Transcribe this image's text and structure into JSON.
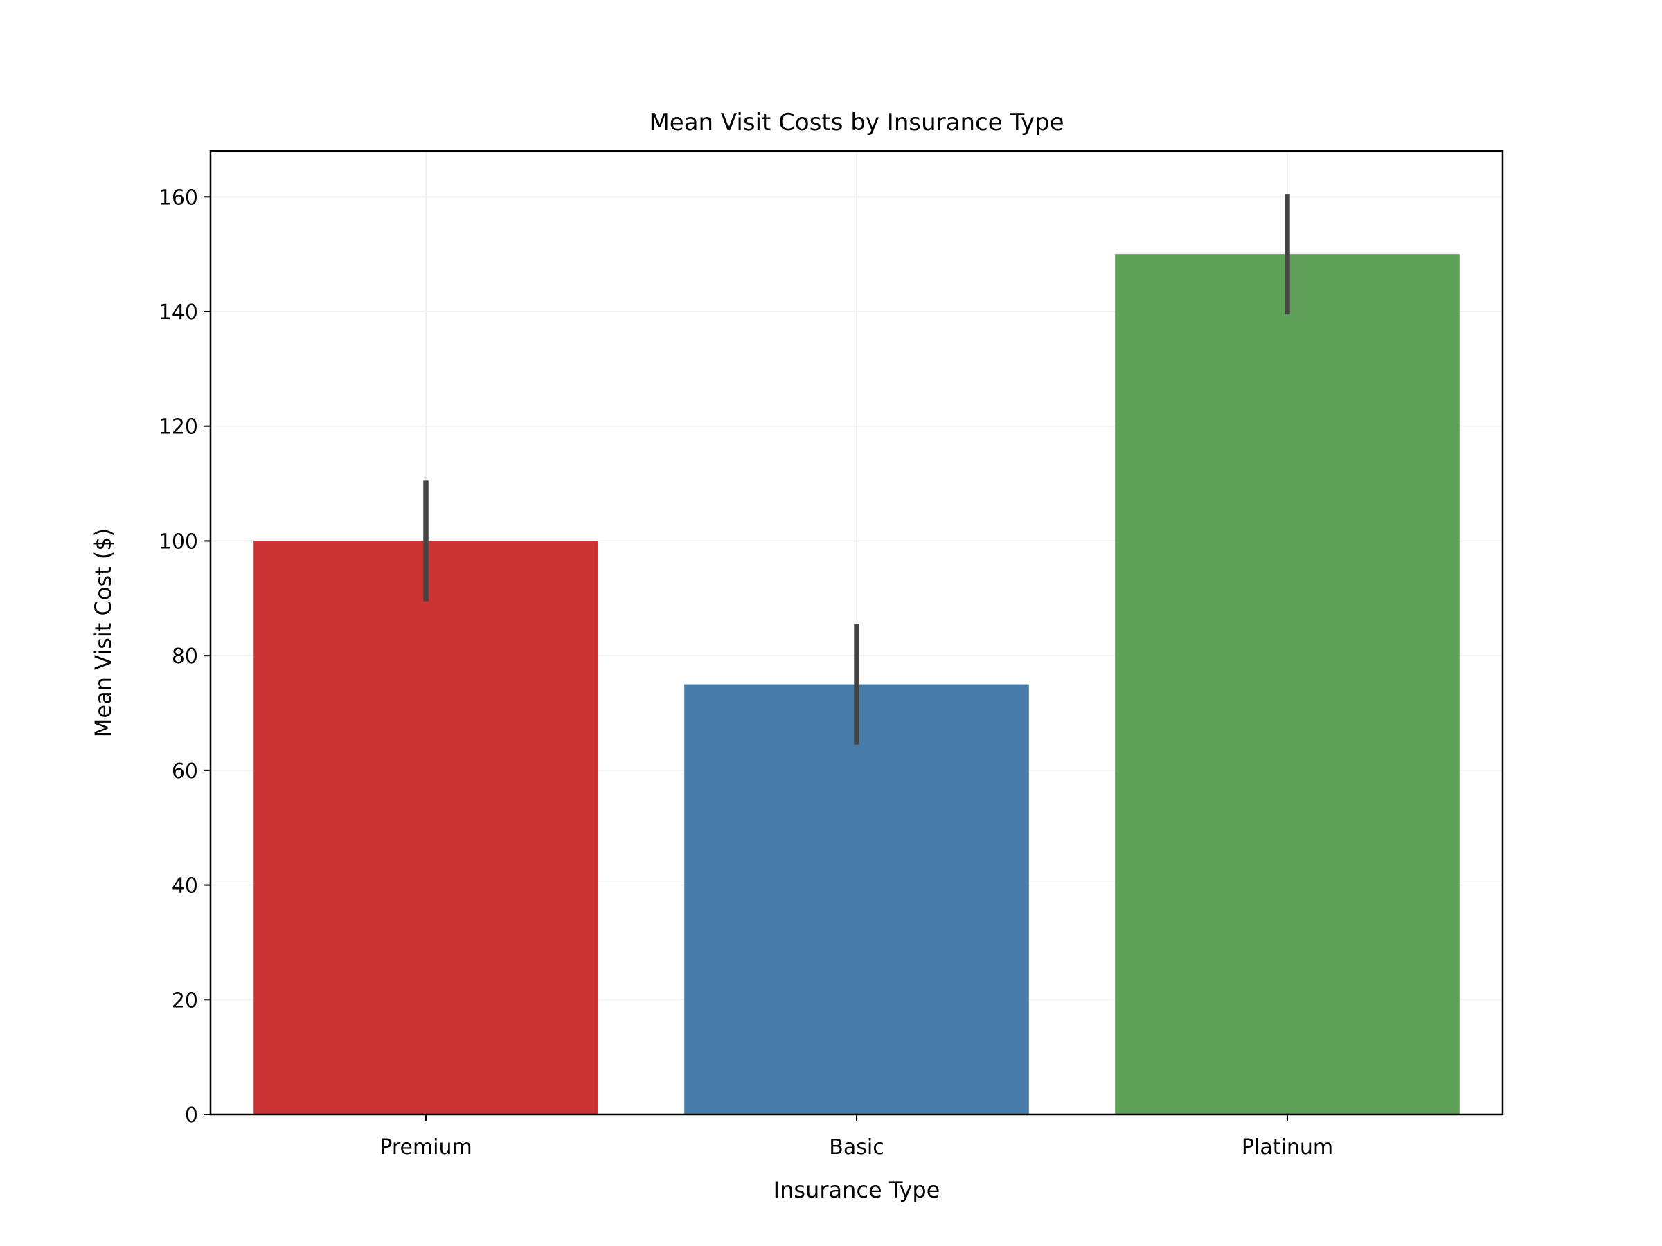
{
  "chart_data": {
    "type": "bar",
    "title": "Mean Visit Costs by Insurance Type",
    "xlabel": "Insurance Type",
    "ylabel": "Mean Visit Cost ($)",
    "categories": [
      "Premium",
      "Basic",
      "Platinum"
    ],
    "values": [
      100,
      75,
      150
    ],
    "error_bars": [
      {
        "low": 89.5,
        "high": 110.5
      },
      {
        "low": 64.5,
        "high": 85.5
      },
      {
        "low": 139.5,
        "high": 160.5
      }
    ],
    "colors": [
      "#cb3335",
      "#477ca8",
      "#5ca157"
    ],
    "error_bar_color": "#444444",
    "ylim": [
      0,
      168
    ],
    "yticks": [
      0,
      20,
      40,
      60,
      80,
      100,
      120,
      140,
      160
    ],
    "ytick_labels": [
      "0",
      "20",
      "40",
      "60",
      "80",
      "100",
      "120",
      "140",
      "160"
    ],
    "grid": true,
    "legend": "none"
  }
}
